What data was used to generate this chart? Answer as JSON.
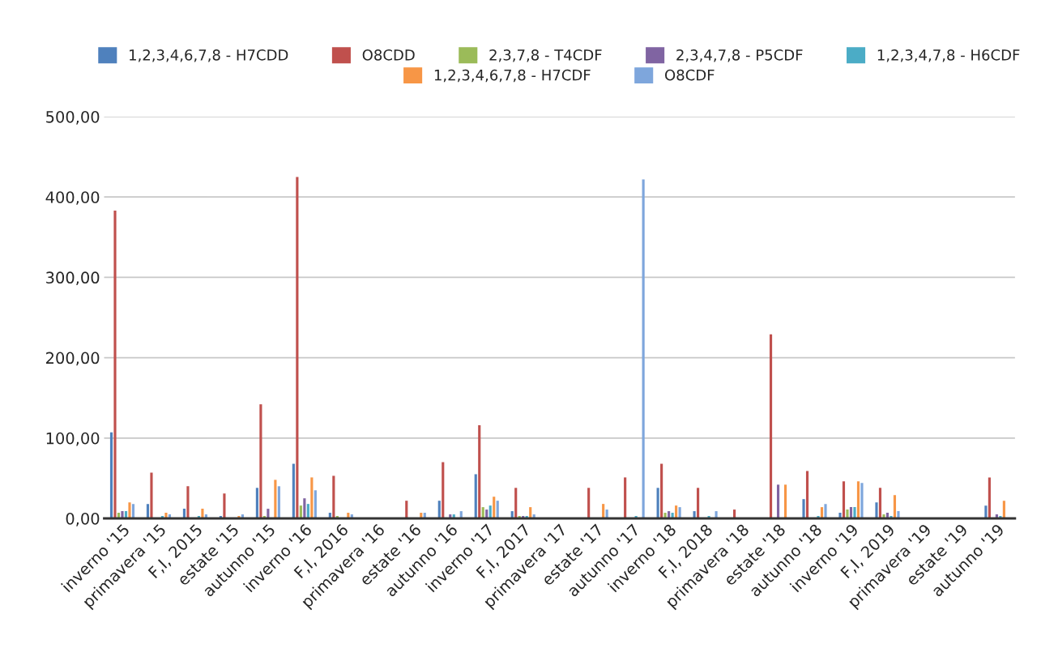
{
  "chart_data": {
    "type": "bar",
    "categories": [
      "inverno '15",
      "primavera '15",
      "F,I, 2015",
      "estate '15",
      "autunno '15",
      "inverno '16",
      "F,I, 2016",
      "primavera '16",
      "estate '16",
      "autunno '16",
      "inverno '17",
      "F,I, 2017",
      "primavera '17",
      "estate '17",
      "autunno '17",
      "inverno '18",
      "F,I, 2018",
      "primavera '18",
      "estate '18",
      "autunno '18",
      "inverno '19",
      "F,I, 2019",
      "primavera '19",
      "estate '19",
      "autunno '19"
    ],
    "series": [
      {
        "name": "1,2,3,4,6,7,8 - H7CDD",
        "color": "#4f81bd",
        "values": [
          107,
          18,
          12,
          3,
          38,
          68,
          7,
          null,
          null,
          22,
          55,
          9,
          null,
          null,
          null,
          38,
          9,
          null,
          null,
          24,
          7,
          20,
          null,
          null,
          16
        ]
      },
      {
        "name": "O8CDD",
        "color": "#c0504d",
        "values": [
          383,
          57,
          40,
          31,
          142,
          425,
          53,
          null,
          22,
          70,
          116,
          38,
          null,
          38,
          51,
          68,
          38,
          11,
          229,
          59,
          46,
          38,
          1,
          null,
          51
        ]
      },
      {
        "name": "2,3,7,8 - T4CDF",
        "color": "#9bbb59",
        "values": [
          7,
          1,
          null,
          null,
          3,
          16,
          3,
          null,
          1,
          null,
          14,
          3,
          null,
          null,
          null,
          7,
          null,
          null,
          null,
          1,
          11,
          5,
          null,
          null,
          1
        ]
      },
      {
        "name": "2,3,4,7,8 - P5CDF",
        "color": "#8064a2",
        "values": [
          9,
          1,
          1,
          null,
          12,
          25,
          1,
          null,
          1,
          5,
          11,
          3,
          null,
          null,
          null,
          9,
          null,
          null,
          42,
          1,
          14,
          7,
          null,
          null,
          5
        ]
      },
      {
        "name": "1,2,3,4,7,8 - H6CDF",
        "color": "#4bacc6",
        "values": [
          9,
          3,
          3,
          1,
          null,
          18,
          null,
          null,
          null,
          5,
          16,
          3,
          null,
          null,
          3,
          7,
          3,
          null,
          null,
          3,
          14,
          3,
          null,
          null,
          3
        ]
      },
      {
        "name": "1,2,3,4,6,7,8 - H7CDF",
        "color": "#f79646",
        "values": [
          20,
          7,
          12,
          3,
          48,
          51,
          7,
          null,
          7,
          null,
          27,
          14,
          null,
          18,
          null,
          16,
          null,
          null,
          42,
          14,
          46,
          29,
          null,
          null,
          22
        ]
      },
      {
        "name": "O8CDF",
        "color": "#7ea6dc",
        "values": [
          18,
          5,
          5,
          5,
          40,
          35,
          5,
          null,
          7,
          9,
          22,
          5,
          null,
          11,
          422,
          14,
          9,
          null,
          null,
          18,
          44,
          9,
          null,
          null,
          null
        ]
      }
    ],
    "ylim": [
      0,
      500
    ],
    "yticks": [
      {
        "value": 0,
        "label": "0,00"
      },
      {
        "value": 100,
        "label": "100,00"
      },
      {
        "value": 200,
        "label": "200,00"
      },
      {
        "value": 300,
        "label": "300,00"
      },
      {
        "value": 400,
        "label": "400,00"
      },
      {
        "value": 500,
        "label": "500,00"
      }
    ],
    "grid": "y",
    "legend": "top"
  }
}
